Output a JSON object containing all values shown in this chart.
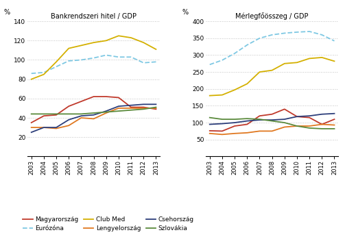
{
  "years": [
    2003,
    2004,
    2005,
    2006,
    2007,
    2008,
    2009,
    2010,
    2011,
    2012,
    2013
  ],
  "chart1_title": "Bankrendszeri hitel / GDP",
  "chart2_title": "Mérlegfőösszeg / GDP",
  "ylabel": "%",
  "chart1_ylim": [
    0,
    140
  ],
  "chart2_ylim": [
    0,
    400
  ],
  "chart1_yticks": [
    0,
    20,
    40,
    60,
    80,
    100,
    120,
    140
  ],
  "chart2_yticks": [
    0,
    50,
    100,
    150,
    200,
    250,
    300,
    350,
    400
  ],
  "series": {
    "Magyarország": {
      "color": "#c0392b",
      "linestyle": "-",
      "linewidth": 1.3,
      "chart1": [
        35,
        42,
        43,
        52,
        57,
        62,
        62,
        61,
        51,
        51,
        49
      ],
      "chart2": [
        76,
        75,
        90,
        95,
        120,
        125,
        140,
        118,
        115,
        95,
        110
      ]
    },
    "Eurózóna": {
      "color": "#7ec8e3",
      "linestyle": "--",
      "linewidth": 1.3,
      "chart1": [
        86,
        87,
        93,
        99,
        100,
        102,
        105,
        103,
        103,
        97,
        98
      ],
      "chart2": [
        272,
        285,
        305,
        330,
        350,
        360,
        365,
        368,
        370,
        360,
        342
      ]
    },
    "Club Med": {
      "color": "#d4b000",
      "linestyle": "-",
      "linewidth": 1.3,
      "chart1": [
        80,
        85,
        98,
        112,
        115,
        118,
        120,
        125,
        123,
        118,
        111
      ],
      "chart2": [
        180,
        182,
        197,
        215,
        250,
        255,
        275,
        278,
        290,
        293,
        282
      ]
    },
    "Lengyelország": {
      "color": "#e07820",
      "linestyle": "-",
      "linewidth": 1.3,
      "chart1": [
        30,
        30,
        29,
        32,
        40,
        39,
        45,
        50,
        50,
        50,
        50
      ],
      "chart2": [
        68,
        65,
        68,
        70,
        75,
        75,
        87,
        90,
        90,
        95,
        93
      ]
    },
    "Csehország": {
      "color": "#2c3e7a",
      "linestyle": "-",
      "linewidth": 1.3,
      "chart1": [
        25,
        30,
        30,
        38,
        42,
        43,
        47,
        52,
        53,
        54,
        54
      ],
      "chart2": [
        95,
        97,
        100,
        105,
        108,
        108,
        110,
        118,
        120,
        125,
        127
      ]
    },
    "Szlovákia": {
      "color": "#5a8a3c",
      "linestyle": "-",
      "linewidth": 1.3,
      "chart1": [
        44,
        44,
        44,
        44,
        44,
        45,
        46,
        47,
        48,
        49,
        51
      ],
      "chart2": [
        115,
        110,
        110,
        112,
        110,
        105,
        100,
        90,
        84,
        82,
        82
      ]
    }
  },
  "legend_row1": [
    "Magyarország",
    "Eurózóna",
    "Club Med"
  ],
  "legend_row2": [
    "Lengyelország",
    "Csehország",
    "Szlovákia"
  ],
  "background_color": "#ffffff",
  "grid_color": "#bbbbbb",
  "grid_linestyle": ":"
}
